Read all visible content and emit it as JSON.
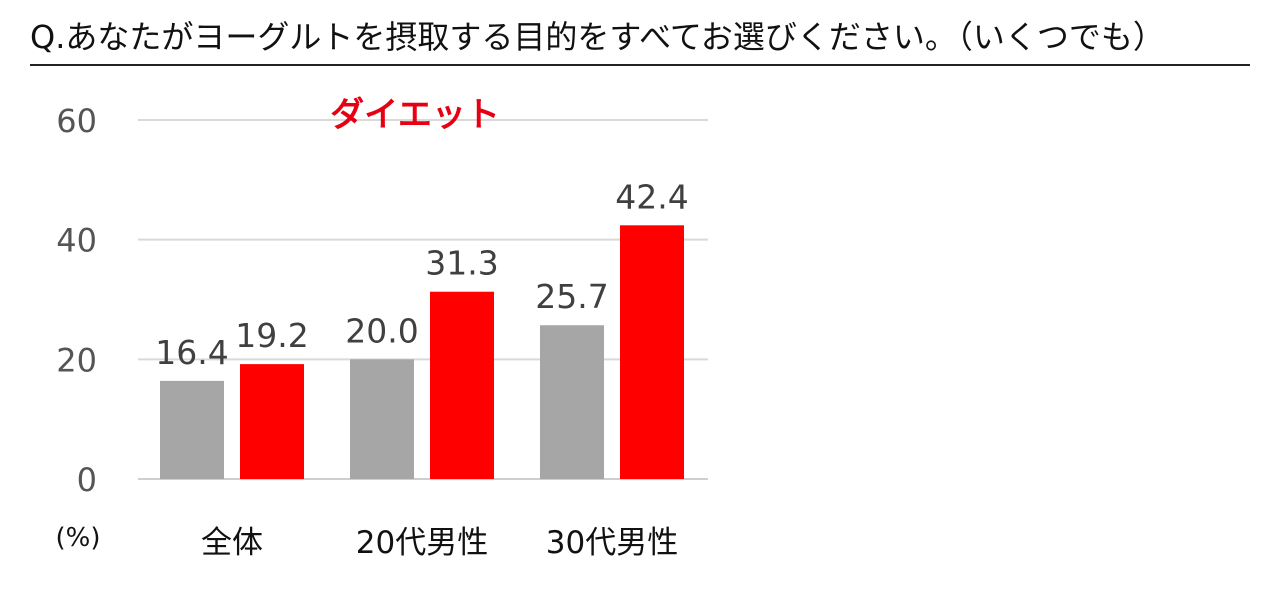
{
  "question": "Q.あなたがヨーグルトを摂取する目的をすべてお選びください。（いくつでも）",
  "chart_data": {
    "type": "bar",
    "title": "ダイエット",
    "unit": "(%)",
    "categories": [
      "全体",
      "20代男性",
      "30代男性"
    ],
    "series": [
      {
        "color": "#a6a6a6",
        "values": [
          16.4,
          20.0,
          25.7
        ],
        "labels": [
          "16.4",
          "20.0",
          "25.7"
        ]
      },
      {
        "color": "#ff0000",
        "values": [
          19.2,
          31.3,
          42.4
        ],
        "labels": [
          "19.2",
          "31.3",
          "42.4"
        ]
      }
    ],
    "yticks": [
      "0",
      "20",
      "40",
      "60"
    ],
    "ylim": [
      0,
      60
    ],
    "grid": true
  }
}
